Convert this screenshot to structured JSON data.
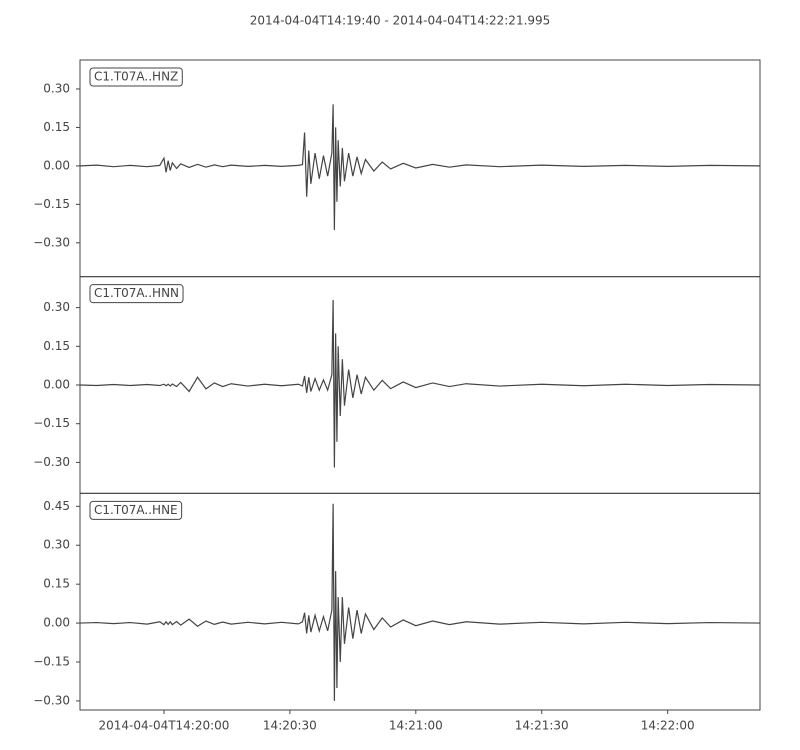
{
  "title": "2014-04-04T14:19:40  -  2014-04-04T14:22:21.995",
  "chart_data": [
    {
      "type": "line",
      "xlim": [
        0,
        161.995
      ],
      "ylim": [
        -0.432,
        0.413
      ],
      "yticks": [
        {
          "value": -0.3,
          "label": "−0.30"
        },
        {
          "value": -0.15,
          "label": "−0.15"
        },
        {
          "value": 0,
          "label": "0.00"
        },
        {
          "value": 0.15,
          "label": "0.15"
        },
        {
          "value": 0.3,
          "label": "0.30"
        }
      ],
      "x": [
        0,
        4,
        8,
        12,
        16,
        19,
        20,
        20.5,
        21,
        21.5,
        22,
        23,
        24,
        26,
        28,
        30,
        32,
        34,
        36,
        40,
        44,
        48,
        52,
        53,
        53.5,
        54,
        54.5,
        55,
        56,
        57,
        58,
        59,
        60,
        60.3,
        60.6,
        60.9,
        61.2,
        61.5,
        62,
        62.5,
        63,
        64,
        65,
        66,
        67,
        68,
        70,
        72,
        74,
        77,
        80,
        84,
        88,
        92,
        100,
        110,
        120,
        130,
        140,
        150,
        162
      ],
      "series": [
        {
          "name": "C1.T07A..HNZ",
          "color": "#444444",
          "values": [
            0,
            0.003,
            -0.003,
            0.002,
            -0.003,
            0.002,
            0.03,
            -0.025,
            0.02,
            -0.018,
            0.012,
            -0.01,
            0.008,
            -0.006,
            0.006,
            -0.005,
            0.004,
            -0.003,
            0.003,
            -0.002,
            0.002,
            -0.002,
            0.002,
            0.005,
            0.13,
            -0.12,
            0.06,
            -0.07,
            0.05,
            -0.05,
            0.04,
            -0.04,
            0.05,
            0.24,
            -0.25,
            0.15,
            -0.14,
            0.1,
            -0.08,
            0.07,
            -0.06,
            0.05,
            -0.04,
            0.035,
            -0.03,
            0.025,
            -0.02,
            0.015,
            -0.012,
            0.01,
            -0.008,
            0.006,
            -0.005,
            0.004,
            -0.003,
            0.003,
            -0.002,
            0.002,
            -0.002,
            0.002,
            0
          ]
        }
      ]
    },
    {
      "type": "line",
      "xlim": [
        0,
        161.995
      ],
      "ylim": [
        -0.42,
        0.42
      ],
      "yticks": [
        {
          "value": -0.3,
          "label": "−0.30"
        },
        {
          "value": -0.15,
          "label": "−0.15"
        },
        {
          "value": 0,
          "label": "0.00"
        },
        {
          "value": 0.15,
          "label": "0.15"
        },
        {
          "value": 0.3,
          "label": "0.30"
        }
      ],
      "x": [
        0,
        4,
        8,
        12,
        16,
        19,
        20,
        20.5,
        21,
        21.5,
        22,
        23,
        24,
        26,
        28,
        30,
        32,
        34,
        36,
        40,
        44,
        48,
        52,
        53,
        53.5,
        54,
        54.5,
        55,
        56,
        57,
        58,
        59,
        60,
        60.3,
        60.6,
        60.9,
        61.2,
        61.5,
        62,
        62.5,
        63,
        64,
        65,
        66,
        67,
        68,
        70,
        72,
        74,
        77,
        80,
        84,
        88,
        92,
        100,
        110,
        120,
        130,
        140,
        150,
        162
      ],
      "series": [
        {
          "name": "C1.T07A..HNN",
          "color": "#444444",
          "values": [
            0,
            -0.002,
            0.002,
            -0.002,
            0.002,
            -0.002,
            0.003,
            -0.003,
            0.003,
            -0.004,
            0.004,
            -0.006,
            0.01,
            -0.025,
            0.03,
            -0.015,
            0.008,
            -0.006,
            0.005,
            -0.004,
            0.003,
            -0.003,
            0.003,
            -0.004,
            0.035,
            -0.03,
            0.03,
            -0.025,
            0.025,
            -0.02,
            0.02,
            -0.02,
            0.04,
            0.33,
            -0.32,
            0.2,
            -0.22,
            0.15,
            -0.12,
            0.1,
            -0.08,
            0.06,
            -0.05,
            0.04,
            -0.035,
            0.03,
            -0.02,
            0.018,
            -0.014,
            0.012,
            -0.01,
            0.008,
            -0.006,
            0.005,
            -0.004,
            0.003,
            -0.003,
            0.003,
            -0.002,
            0.002,
            0
          ]
        }
      ]
    },
    {
      "type": "line",
      "xlim": [
        0,
        161.995
      ],
      "ylim": [
        -0.335,
        0.5
      ],
      "yticks": [
        {
          "value": -0.3,
          "label": "−0.30"
        },
        {
          "value": -0.15,
          "label": "−0.15"
        },
        {
          "value": 0,
          "label": "0.00"
        },
        {
          "value": 0.15,
          "label": "0.15"
        },
        {
          "value": 0.3,
          "label": "0.30"
        },
        {
          "value": 0.45,
          "label": "0.45"
        }
      ],
      "xticks": [
        {
          "value": 20,
          "label": "2014-04-04T14:20:00"
        },
        {
          "value": 50,
          "label": "14:20:30"
        },
        {
          "value": 80,
          "label": "14:21:00"
        },
        {
          "value": 110,
          "label": "14:21:30"
        },
        {
          "value": 140,
          "label": "14:22:00"
        }
      ],
      "x": [
        0,
        4,
        8,
        12,
        16,
        19,
        20,
        20.5,
        21,
        21.5,
        22,
        23,
        24,
        26,
        28,
        30,
        32,
        34,
        36,
        40,
        44,
        48,
        52,
        53,
        53.5,
        54,
        54.5,
        55,
        56,
        57,
        58,
        59,
        60,
        60.3,
        60.6,
        60.9,
        61.2,
        61.5,
        62,
        62.5,
        63,
        64,
        65,
        66,
        67,
        68,
        70,
        72,
        74,
        77,
        80,
        84,
        88,
        92,
        100,
        110,
        120,
        130,
        140,
        150,
        162
      ],
      "series": [
        {
          "name": "C1.T07A..HNE",
          "color": "#444444",
          "values": [
            0,
            0.002,
            -0.002,
            0.002,
            -0.004,
            0.005,
            -0.006,
            0.005,
            -0.005,
            0.005,
            -0.006,
            0.006,
            -0.008,
            0.015,
            -0.012,
            0.008,
            -0.005,
            0.004,
            -0.004,
            0.003,
            -0.003,
            0.003,
            -0.003,
            0.005,
            0.04,
            -0.04,
            0.03,
            -0.035,
            0.03,
            -0.03,
            0.025,
            -0.03,
            0.05,
            0.46,
            -0.3,
            0.2,
            -0.25,
            0.1,
            -0.15,
            0.1,
            -0.08,
            0.06,
            -0.06,
            0.05,
            -0.04,
            0.035,
            -0.025,
            0.02,
            -0.015,
            0.012,
            -0.01,
            0.008,
            -0.006,
            0.005,
            -0.004,
            0.003,
            -0.003,
            0.003,
            -0.002,
            0.002,
            0
          ]
        }
      ]
    }
  ]
}
